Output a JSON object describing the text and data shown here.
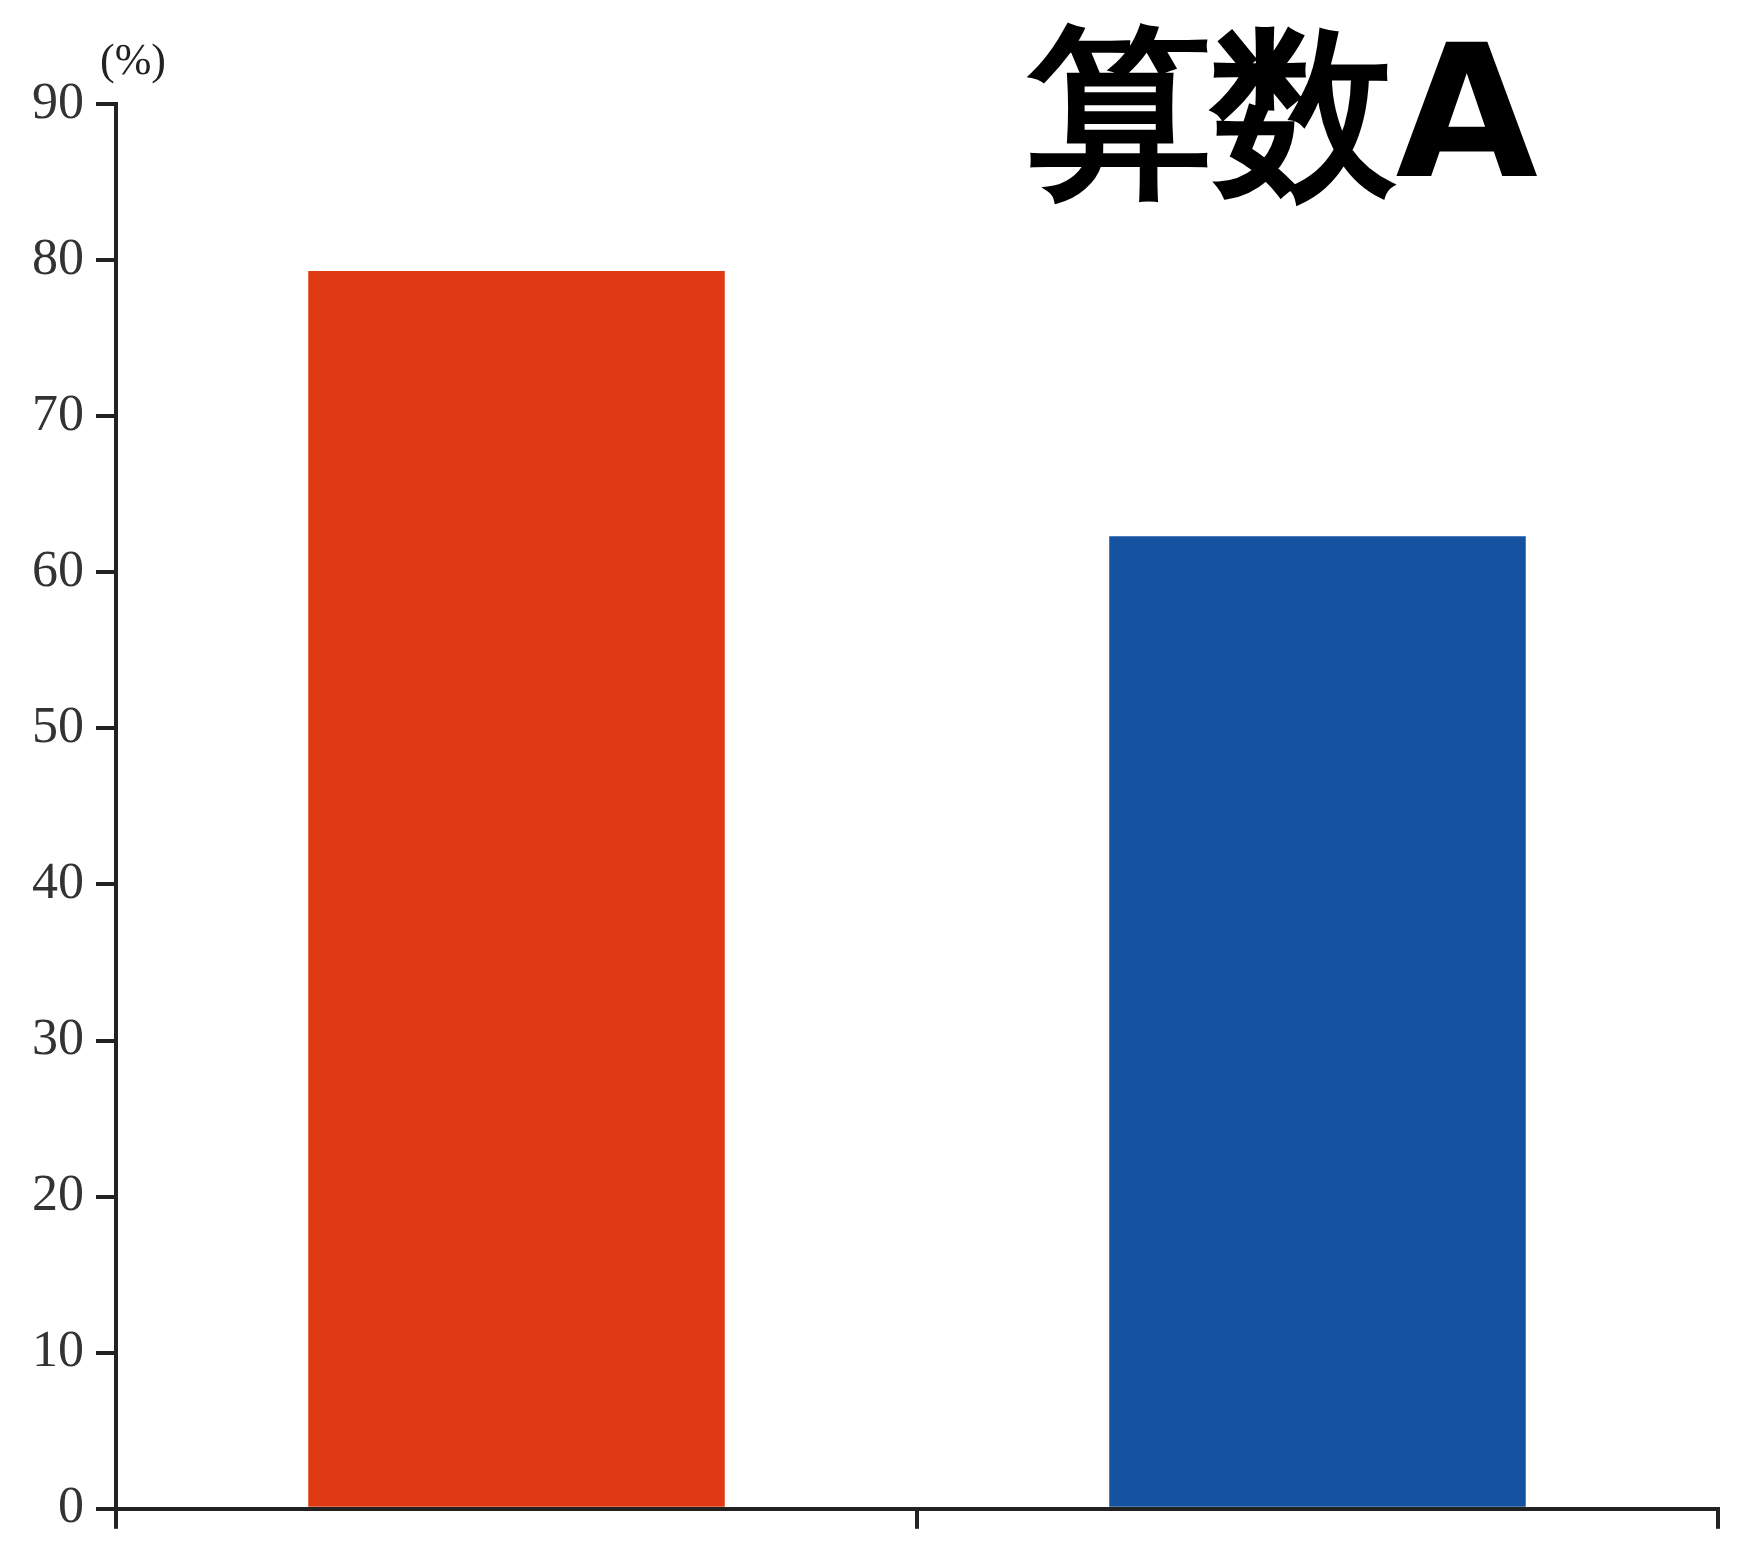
{
  "chart_data": {
    "type": "bar",
    "title": "算数A",
    "ylabel": "(%)",
    "categories": [
      null,
      null
    ],
    "values": [
      79.3,
      62.3
    ],
    "colors": [
      "#e03a14",
      "#1552a0"
    ],
    "ylim": [
      0,
      90
    ],
    "yticks": [
      0,
      10,
      20,
      30,
      40,
      50,
      60,
      70,
      80,
      90
    ],
    "grid": false,
    "legend": false
  }
}
